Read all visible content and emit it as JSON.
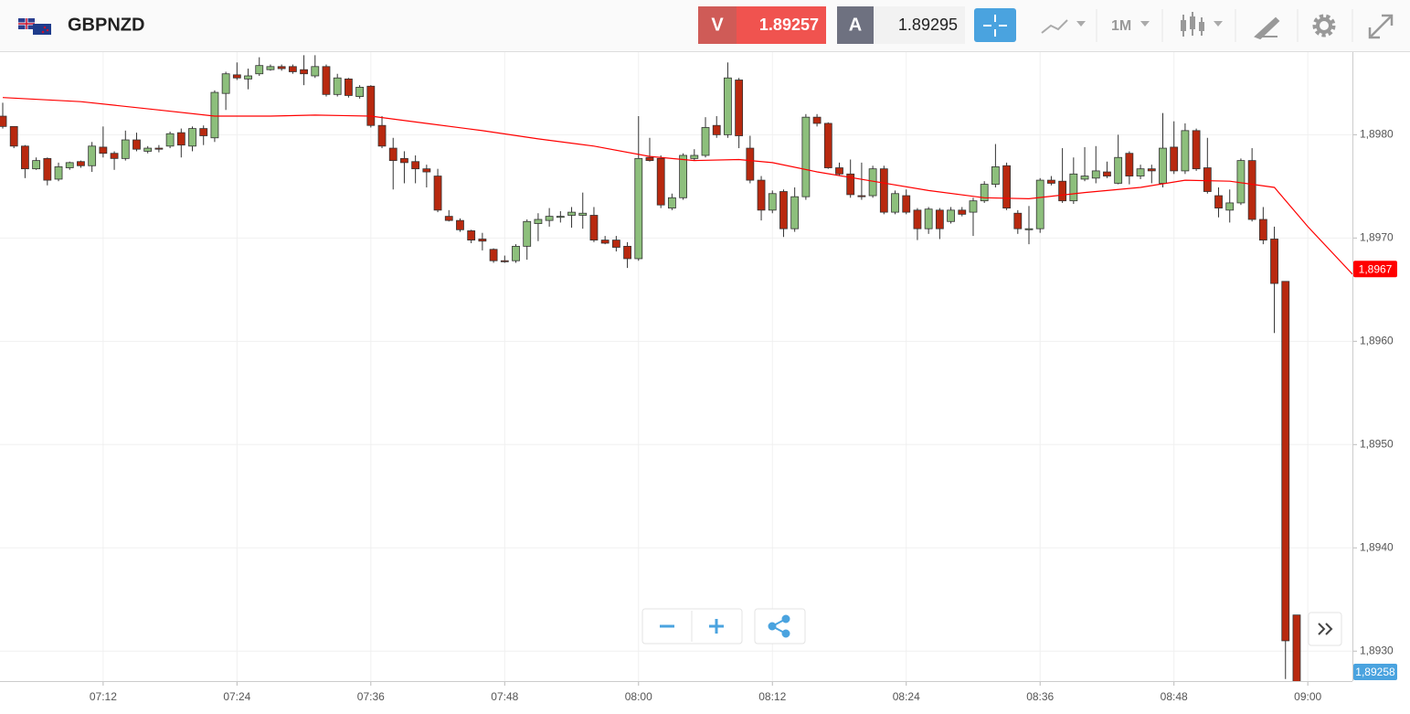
{
  "toolbar": {
    "symbol": "GBPNZD",
    "sell_label": "V",
    "sell_price": "1.89257",
    "buy_label": "A",
    "buy_price": "1.89295",
    "timeframe": "1M"
  },
  "chart_data": {
    "type": "candlestick",
    "x": [
      "07:03",
      "07:04",
      "07:05",
      "07:06",
      "07:07",
      "07:08",
      "07:09",
      "07:10",
      "07:11",
      "07:12",
      "07:13",
      "07:14",
      "07:15",
      "07:16",
      "07:17",
      "07:18",
      "07:19",
      "07:20",
      "07:21",
      "07:22",
      "07:23",
      "07:24",
      "07:25",
      "07:26",
      "07:27",
      "07:28",
      "07:29",
      "07:30",
      "07:31",
      "07:32",
      "07:33",
      "07:34",
      "07:35",
      "07:36",
      "07:37",
      "07:38",
      "07:39",
      "07:40",
      "07:41",
      "07:42",
      "07:43",
      "07:44",
      "07:45",
      "07:46",
      "07:47",
      "07:48",
      "07:49",
      "07:50",
      "07:51",
      "07:52",
      "07:53",
      "07:54",
      "07:55",
      "07:56",
      "07:57",
      "07:58",
      "07:59",
      "08:00",
      "08:01",
      "08:02",
      "08:03",
      "08:04",
      "08:05",
      "08:06",
      "08:07",
      "08:08",
      "08:09",
      "08:10",
      "08:11",
      "08:12",
      "08:13",
      "08:14",
      "08:15",
      "08:16",
      "08:17",
      "08:18",
      "08:19",
      "08:20",
      "08:21",
      "08:22",
      "08:23",
      "08:24",
      "08:25",
      "08:26",
      "08:27",
      "08:28",
      "08:29",
      "08:30",
      "08:31",
      "08:32",
      "08:33",
      "08:34",
      "08:35",
      "08:36",
      "08:37",
      "08:38",
      "08:39",
      "08:40",
      "08:41",
      "08:42",
      "08:43",
      "08:44",
      "08:45",
      "08:46",
      "08:47",
      "08:48",
      "08:49",
      "08:50",
      "08:51",
      "08:52",
      "08:53",
      "08:54",
      "08:55",
      "08:56",
      "08:57",
      "08:58",
      "08:59"
    ],
    "open": [
      1.89818,
      1.89808,
      1.89789,
      1.89767,
      1.89777,
      1.89757,
      1.89768,
      1.89774,
      1.8977,
      1.89788,
      1.89782,
      1.89777,
      1.89795,
      1.89784,
      1.89787,
      1.89789,
      1.89802,
      1.89789,
      1.89806,
      1.89797,
      1.8984,
      1.89858,
      1.89854,
      1.89859,
      1.89863,
      1.89866,
      1.89866,
      1.89863,
      1.89857,
      1.89866,
      1.89839,
      1.89854,
      1.89837,
      1.89847,
      1.89809,
      1.89787,
      1.89777,
      1.89774,
      1.89767,
      1.8976,
      1.89721,
      1.89717,
      1.89707,
      1.89699,
      1.89689,
      1.89678,
      1.89678,
      1.89692,
      1.89714,
      1.89717,
      1.8972,
      1.89722,
      1.89722,
      1.89722,
      1.89698,
      1.89698,
      1.89692,
      1.8968,
      1.89778,
      1.89777,
      1.89729,
      1.89739,
      1.89777,
      1.8978,
      1.89809,
      1.898,
      1.89853,
      1.89787,
      1.89756,
      1.89727,
      1.89745,
      1.89709,
      1.8974,
      1.89817,
      1.89811,
      1.89768,
      1.89762,
      1.89741,
      1.89741,
      1.89767,
      1.89725,
      1.89741,
      1.89727,
      1.89709,
      1.89727,
      1.89716,
      1.89727,
      1.89725,
      1.89736,
      1.89752,
      1.8977,
      1.89724,
      1.89708,
      1.89709,
      1.89756,
      1.89755,
      1.89736,
      1.89757,
      1.89758,
      1.89764,
      1.89753,
      1.89782,
      1.8976,
      1.89767,
      1.89753,
      1.89788,
      1.89765,
      1.89804,
      1.89768,
      1.89741,
      1.89727,
      1.89734,
      1.89775,
      1.89718,
      1.89699,
      1.89658,
      1.89335
    ],
    "high": [
      1.89831,
      1.89808,
      1.8979,
      1.89778,
      1.89778,
      1.89773,
      1.89774,
      1.89775,
      1.89793,
      1.89808,
      1.89784,
      1.89804,
      1.89802,
      1.89789,
      1.8979,
      1.89803,
      1.89806,
      1.89808,
      1.89809,
      1.89843,
      1.89861,
      1.8987,
      1.89864,
      1.89875,
      1.89868,
      1.89868,
      1.89868,
      1.89877,
      1.89877,
      1.89868,
      1.89859,
      1.89855,
      1.89848,
      1.89848,
      1.89818,
      1.89797,
      1.89784,
      1.8978,
      1.89771,
      1.89767,
      1.89727,
      1.89719,
      1.89708,
      1.89705,
      1.8969,
      1.89683,
      1.89694,
      1.89718,
      1.89724,
      1.89729,
      1.89726,
      1.8973,
      1.89744,
      1.8973,
      1.89702,
      1.89702,
      1.89696,
      1.89818,
      1.89797,
      1.8978,
      1.89743,
      1.89782,
      1.89786,
      1.89817,
      1.89818,
      1.8987,
      1.89855,
      1.89799,
      1.8976,
      1.89746,
      1.89747,
      1.89749,
      1.8982,
      1.8982,
      1.89812,
      1.89773,
      1.89776,
      1.89773,
      1.8977,
      1.8977,
      1.89746,
      1.89747,
      1.89729,
      1.8973,
      1.89729,
      1.8973,
      1.8973,
      1.89739,
      1.89755,
      1.89791,
      1.89773,
      1.89727,
      1.89731,
      1.89758,
      1.8976,
      1.89787,
      1.89778,
      1.89788,
      1.89789,
      1.89774,
      1.898,
      1.89784,
      1.89771,
      1.89771,
      1.89821,
      1.89813,
      1.89811,
      1.89806,
      1.89797,
      1.89749,
      1.89747,
      1.89777,
      1.89787,
      1.8973,
      1.89711,
      1.89658,
      1.89335
    ],
    "low": [
      1.89806,
      1.89787,
      1.89758,
      1.89766,
      1.89751,
      1.89755,
      1.89766,
      1.89768,
      1.89764,
      1.89778,
      1.89766,
      1.89775,
      1.89784,
      1.89782,
      1.89783,
      1.89787,
      1.89778,
      1.89784,
      1.8979,
      1.89793,
      1.89824,
      1.89853,
      1.89844,
      1.89857,
      1.89862,
      1.89862,
      1.89859,
      1.89848,
      1.89855,
      1.89837,
      1.89837,
      1.89836,
      1.89835,
      1.89807,
      1.89787,
      1.89747,
      1.89753,
      1.89753,
      1.89749,
      1.89725,
      1.89716,
      1.89706,
      1.89695,
      1.89688,
      1.89676,
      1.89676,
      1.89676,
      1.89679,
      1.89697,
      1.89711,
      1.89715,
      1.8971,
      1.89709,
      1.89696,
      1.89694,
      1.89687,
      1.89671,
      1.89678,
      1.89774,
      1.89729,
      1.89727,
      1.89737,
      1.89775,
      1.89778,
      1.89797,
      1.89797,
      1.89787,
      1.89753,
      1.89717,
      1.89724,
      1.89701,
      1.89706,
      1.89737,
      1.89808,
      1.89767,
      1.8976,
      1.89739,
      1.89737,
      1.89739,
      1.89723,
      1.89723,
      1.89723,
      1.89698,
      1.89704,
      1.89699,
      1.89714,
      1.89721,
      1.89702,
      1.89734,
      1.89749,
      1.89727,
      1.89704,
      1.89694,
      1.89705,
      1.89751,
      1.89734,
      1.89733,
      1.89755,
      1.89753,
      1.89758,
      1.89752,
      1.89752,
      1.89757,
      1.89753,
      1.89749,
      1.89762,
      1.89762,
      1.89765,
      1.89743,
      1.8972,
      1.89715,
      1.89732,
      1.89716,
      1.89694,
      1.89608,
      1.89273,
      1.89258
    ],
    "close": [
      1.89808,
      1.89789,
      1.89767,
      1.89775,
      1.89756,
      1.89769,
      1.89773,
      1.8977,
      1.89789,
      1.89782,
      1.89777,
      1.89795,
      1.89786,
      1.89787,
      1.89786,
      1.89801,
      1.8979,
      1.89806,
      1.89799,
      1.89841,
      1.89859,
      1.89855,
      1.89857,
      1.89867,
      1.89866,
      1.89864,
      1.89861,
      1.89859,
      1.89866,
      1.89839,
      1.89855,
      1.89838,
      1.89846,
      1.89809,
      1.89789,
      1.89775,
      1.89773,
      1.89767,
      1.89764,
      1.89727,
      1.89717,
      1.89708,
      1.89698,
      1.89697,
      1.89678,
      1.89677,
      1.89692,
      1.89716,
      1.89718,
      1.89721,
      1.89721,
      1.89725,
      1.89724,
      1.89698,
      1.89695,
      1.89691,
      1.8968,
      1.89777,
      1.89775,
      1.89732,
      1.89739,
      1.8978,
      1.8978,
      1.89807,
      1.898,
      1.89855,
      1.89799,
      1.89756,
      1.89727,
      1.89743,
      1.89709,
      1.8974,
      1.89817,
      1.89811,
      1.89768,
      1.89762,
      1.89742,
      1.8974,
      1.89767,
      1.89725,
      1.89743,
      1.89725,
      1.89709,
      1.89728,
      1.89709,
      1.89727,
      1.89723,
      1.89736,
      1.89752,
      1.89769,
      1.89729,
      1.89709,
      1.89709,
      1.89756,
      1.89753,
      1.89736,
      1.89762,
      1.8976,
      1.89765,
      1.8976,
      1.89778,
      1.8976,
      1.89767,
      1.89765,
      1.89787,
      1.89765,
      1.89804,
      1.89767,
      1.89745,
      1.89729,
      1.89734,
      1.89775,
      1.89718,
      1.89698,
      1.89656,
      1.8931,
      1.89258
    ],
    "up_color": "#8dbf7c",
    "down_color": "#b8290f",
    "overlays": [
      {
        "color": "#ff0000",
        "x": [
          "07:03",
          "07:10",
          "07:17",
          "07:22",
          "07:27",
          "07:31",
          "07:36",
          "07:41",
          "07:46",
          "07:51",
          "07:56",
          "08:01",
          "08:05",
          "08:09",
          "08:12",
          "08:16",
          "08:21",
          "08:26",
          "08:31",
          "08:35",
          "08:40",
          "08:45",
          "08:49",
          "08:53",
          "08:57",
          "09:00",
          "09:04"
        ],
        "values": [
          1.89836,
          1.89832,
          1.89824,
          1.89818,
          1.89818,
          1.89819,
          1.89818,
          1.89811,
          1.89804,
          1.89796,
          1.89789,
          1.89779,
          1.89775,
          1.89776,
          1.89773,
          1.89764,
          1.89755,
          1.89746,
          1.89739,
          1.89738,
          1.89744,
          1.89749,
          1.89756,
          1.89755,
          1.89749,
          1.89711,
          1.89665
        ]
      }
    ],
    "xlim": [
      "07:03",
      "09:04"
    ],
    "xticks": [
      "07:12",
      "07:24",
      "07:36",
      "07:48",
      "08:00",
      "08:12",
      "08:24",
      "08:36",
      "08:48",
      "09:00"
    ],
    "ylim": [
      1.89271,
      1.8988
    ],
    "yticks": [
      {
        "value": 1.893,
        "label": "1,8930"
      },
      {
        "value": 1.894,
        "label": "1,8940"
      },
      {
        "value": 1.895,
        "label": "1,8950"
      },
      {
        "value": 1.896,
        "label": "1,8960"
      },
      {
        "value": 1.897,
        "label": "1,8970"
      },
      {
        "value": 1.898,
        "label": "1,8980"
      }
    ],
    "grid": true,
    "price_labels": [
      {
        "value": 1.8967,
        "label": "1,8967",
        "color": "#ff0000"
      },
      {
        "value": 1.89258,
        "label": "1,89258",
        "color": "#4aa3df"
      }
    ]
  }
}
